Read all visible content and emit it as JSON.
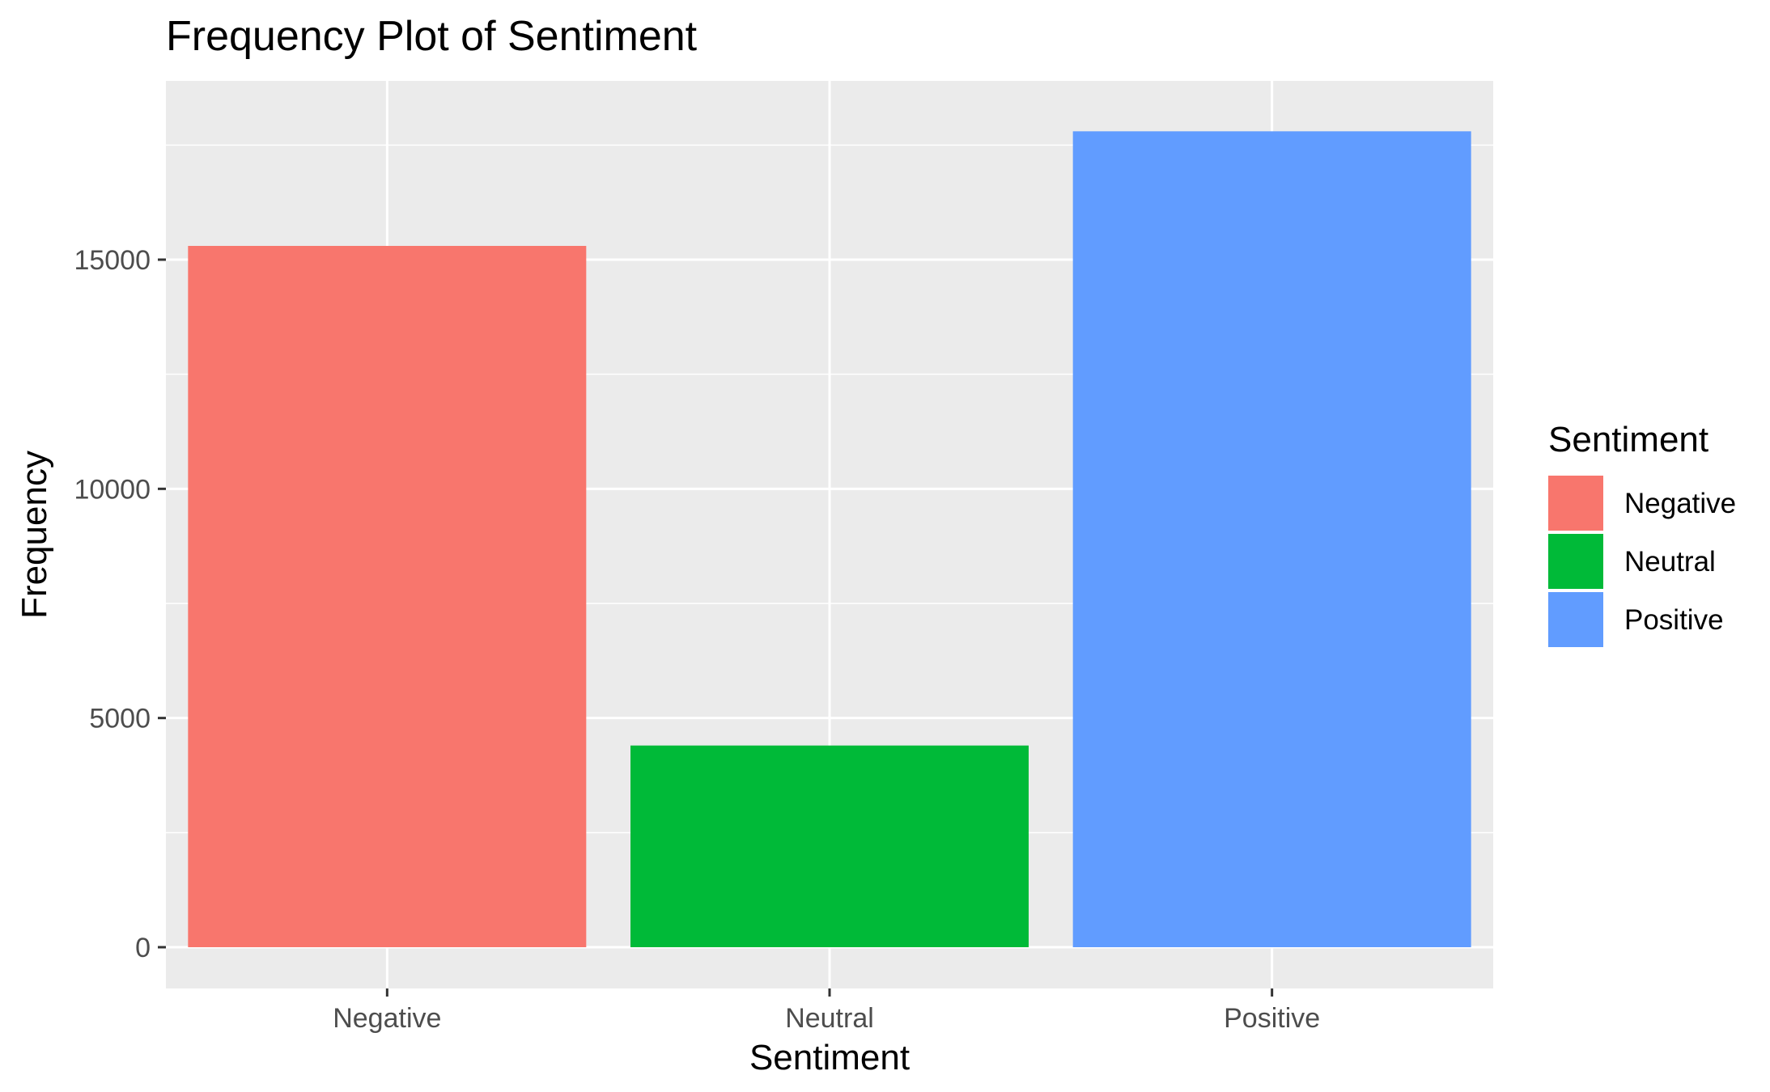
{
  "chart_data": {
    "type": "bar",
    "title": "Frequency Plot of Sentiment",
    "xlabel": "Sentiment",
    "ylabel": "Frequency",
    "categories": [
      "Negative",
      "Neutral",
      "Positive"
    ],
    "values": [
      15300,
      4400,
      17800
    ],
    "colors": [
      "#F8766D",
      "#00BA38",
      "#619CFF"
    ],
    "ylim": [
      -900,
      18900
    ],
    "yticks": [
      0,
      5000,
      10000,
      15000
    ],
    "yticks_minor": [
      2500,
      7500,
      12500,
      17500
    ],
    "ytick_labels": [
      "0",
      "5000",
      "10000",
      "15000"
    ],
    "grid": true,
    "panel_background": "#EBEBEB",
    "legend": {
      "title": "Sentiment",
      "placement": "right",
      "items": [
        {
          "label": "Negative",
          "color": "#F8766D"
        },
        {
          "label": "Neutral",
          "color": "#00BA38"
        },
        {
          "label": "Positive",
          "color": "#619CFF"
        }
      ]
    }
  }
}
